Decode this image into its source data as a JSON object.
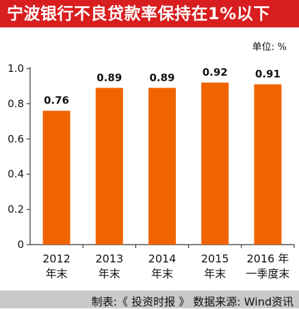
{
  "title": "宁波银行不良贷款率保持在1%以下",
  "unit_label": "单位: %",
  "source": "制表:《 投资时报 》 数据来源: Wind资讯",
  "colors": {
    "title_bg": "#d81e1e",
    "bar": "#f06400",
    "footer_bg": "#c9c9c9"
  },
  "chart_data": {
    "type": "bar",
    "categories": [
      [
        "2012",
        "年末"
      ],
      [
        "2013",
        "年末"
      ],
      [
        "2014",
        "年末"
      ],
      [
        "2015",
        "年末"
      ],
      [
        "2016 年",
        "一季度末"
      ]
    ],
    "values": [
      0.76,
      0.89,
      0.89,
      0.92,
      0.91
    ],
    "data_labels": [
      "0.76",
      "0.89",
      "0.89",
      "0.92",
      "0.91"
    ],
    "y_ticks": [
      "0",
      "0.2",
      "0.4",
      "0.6",
      "0.8",
      "1.0"
    ],
    "ylim": [
      0,
      1.0
    ],
    "grid": false,
    "legend": "none"
  }
}
